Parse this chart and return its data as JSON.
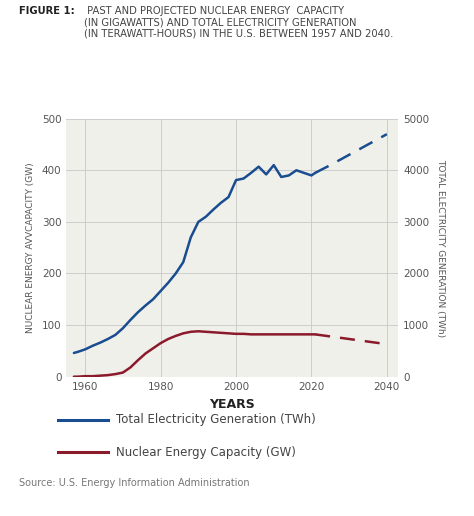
{
  "title_bold": "FIGURE 1:",
  "title_rest": " PAST AND PROJECTED NUCLEAR ENERGY  CAPACITY\n(IN GIGAWATTS) AND TOTAL ELECTRICITY GENERATION\n(IN TERAWATT-HOURS) IN THE U.S. BETWEEN 1957 AND 2040.",
  "ylabel_left": "NUCLEAR ENERGY AVVCAPACITY (GW)",
  "ylabel_right": "TOTAL ELECTRICITY GENERATION (TWh)",
  "xlabel": "YEARS",
  "source": "Source: U.S. Energy Information Administration",
  "legend_blue": "Total Electricity Generation (TWh)",
  "legend_red": "Nuclear Energy Capacity (GW)",
  "xlim": [
    1955,
    2043
  ],
  "ylim_left": [
    0,
    500
  ],
  "ylim_right": [
    0,
    5000
  ],
  "xticks": [
    1960,
    1980,
    2000,
    2020,
    2040
  ],
  "yticks_left": [
    0,
    100,
    200,
    300,
    400,
    500
  ],
  "yticks_right": [
    0,
    1000,
    2000,
    3000,
    4000,
    5000
  ],
  "blue_solid_x": [
    1957,
    1958,
    1960,
    1962,
    1964,
    1966,
    1968,
    1970,
    1972,
    1974,
    1976,
    1978,
    1980,
    1982,
    1984,
    1986,
    1988,
    1990,
    1992,
    1994,
    1996,
    1998,
    2000,
    2002,
    2004,
    2006,
    2008,
    2010,
    2012,
    2014,
    2016,
    2018,
    2020,
    2021
  ],
  "blue_solid_y": [
    460,
    480,
    530,
    600,
    660,
    730,
    810,
    940,
    1100,
    1250,
    1380,
    1500,
    1660,
    1820,
    2000,
    2220,
    2700,
    3000,
    3100,
    3240,
    3370,
    3480,
    3810,
    3840,
    3950,
    4070,
    3920,
    4100,
    3870,
    3900,
    4000,
    3950,
    3900,
    3950
  ],
  "blue_dashed_x": [
    2021,
    2025,
    2030,
    2035,
    2040
  ],
  "blue_dashed_y": [
    3950,
    4100,
    4300,
    4500,
    4700
  ],
  "red_solid_x": [
    1957,
    1958,
    1960,
    1962,
    1964,
    1966,
    1968,
    1970,
    1972,
    1974,
    1976,
    1978,
    1980,
    1982,
    1984,
    1986,
    1988,
    1990,
    1992,
    1994,
    1996,
    1998,
    2000,
    2002,
    2004,
    2006,
    2008,
    2010,
    2012,
    2014,
    2016,
    2018,
    2020,
    2021
  ],
  "red_solid_y": [
    0,
    0,
    1,
    1,
    2,
    3,
    5,
    8,
    18,
    32,
    45,
    55,
    65,
    73,
    79,
    84,
    87,
    88,
    87,
    86,
    85,
    84,
    83,
    83,
    82,
    82,
    82,
    82,
    82,
    82,
    82,
    82,
    82,
    82
  ],
  "red_dashed_x": [
    2021,
    2025,
    2030,
    2035,
    2040
  ],
  "red_dashed_y": [
    82,
    78,
    73,
    68,
    63
  ],
  "blue_color": "#1a4d8f",
  "red_color": "#8b1a2a",
  "grid_color": "#c8c8c8",
  "background_color": "#ffffff",
  "plot_bg_color": "#f0f0eb"
}
